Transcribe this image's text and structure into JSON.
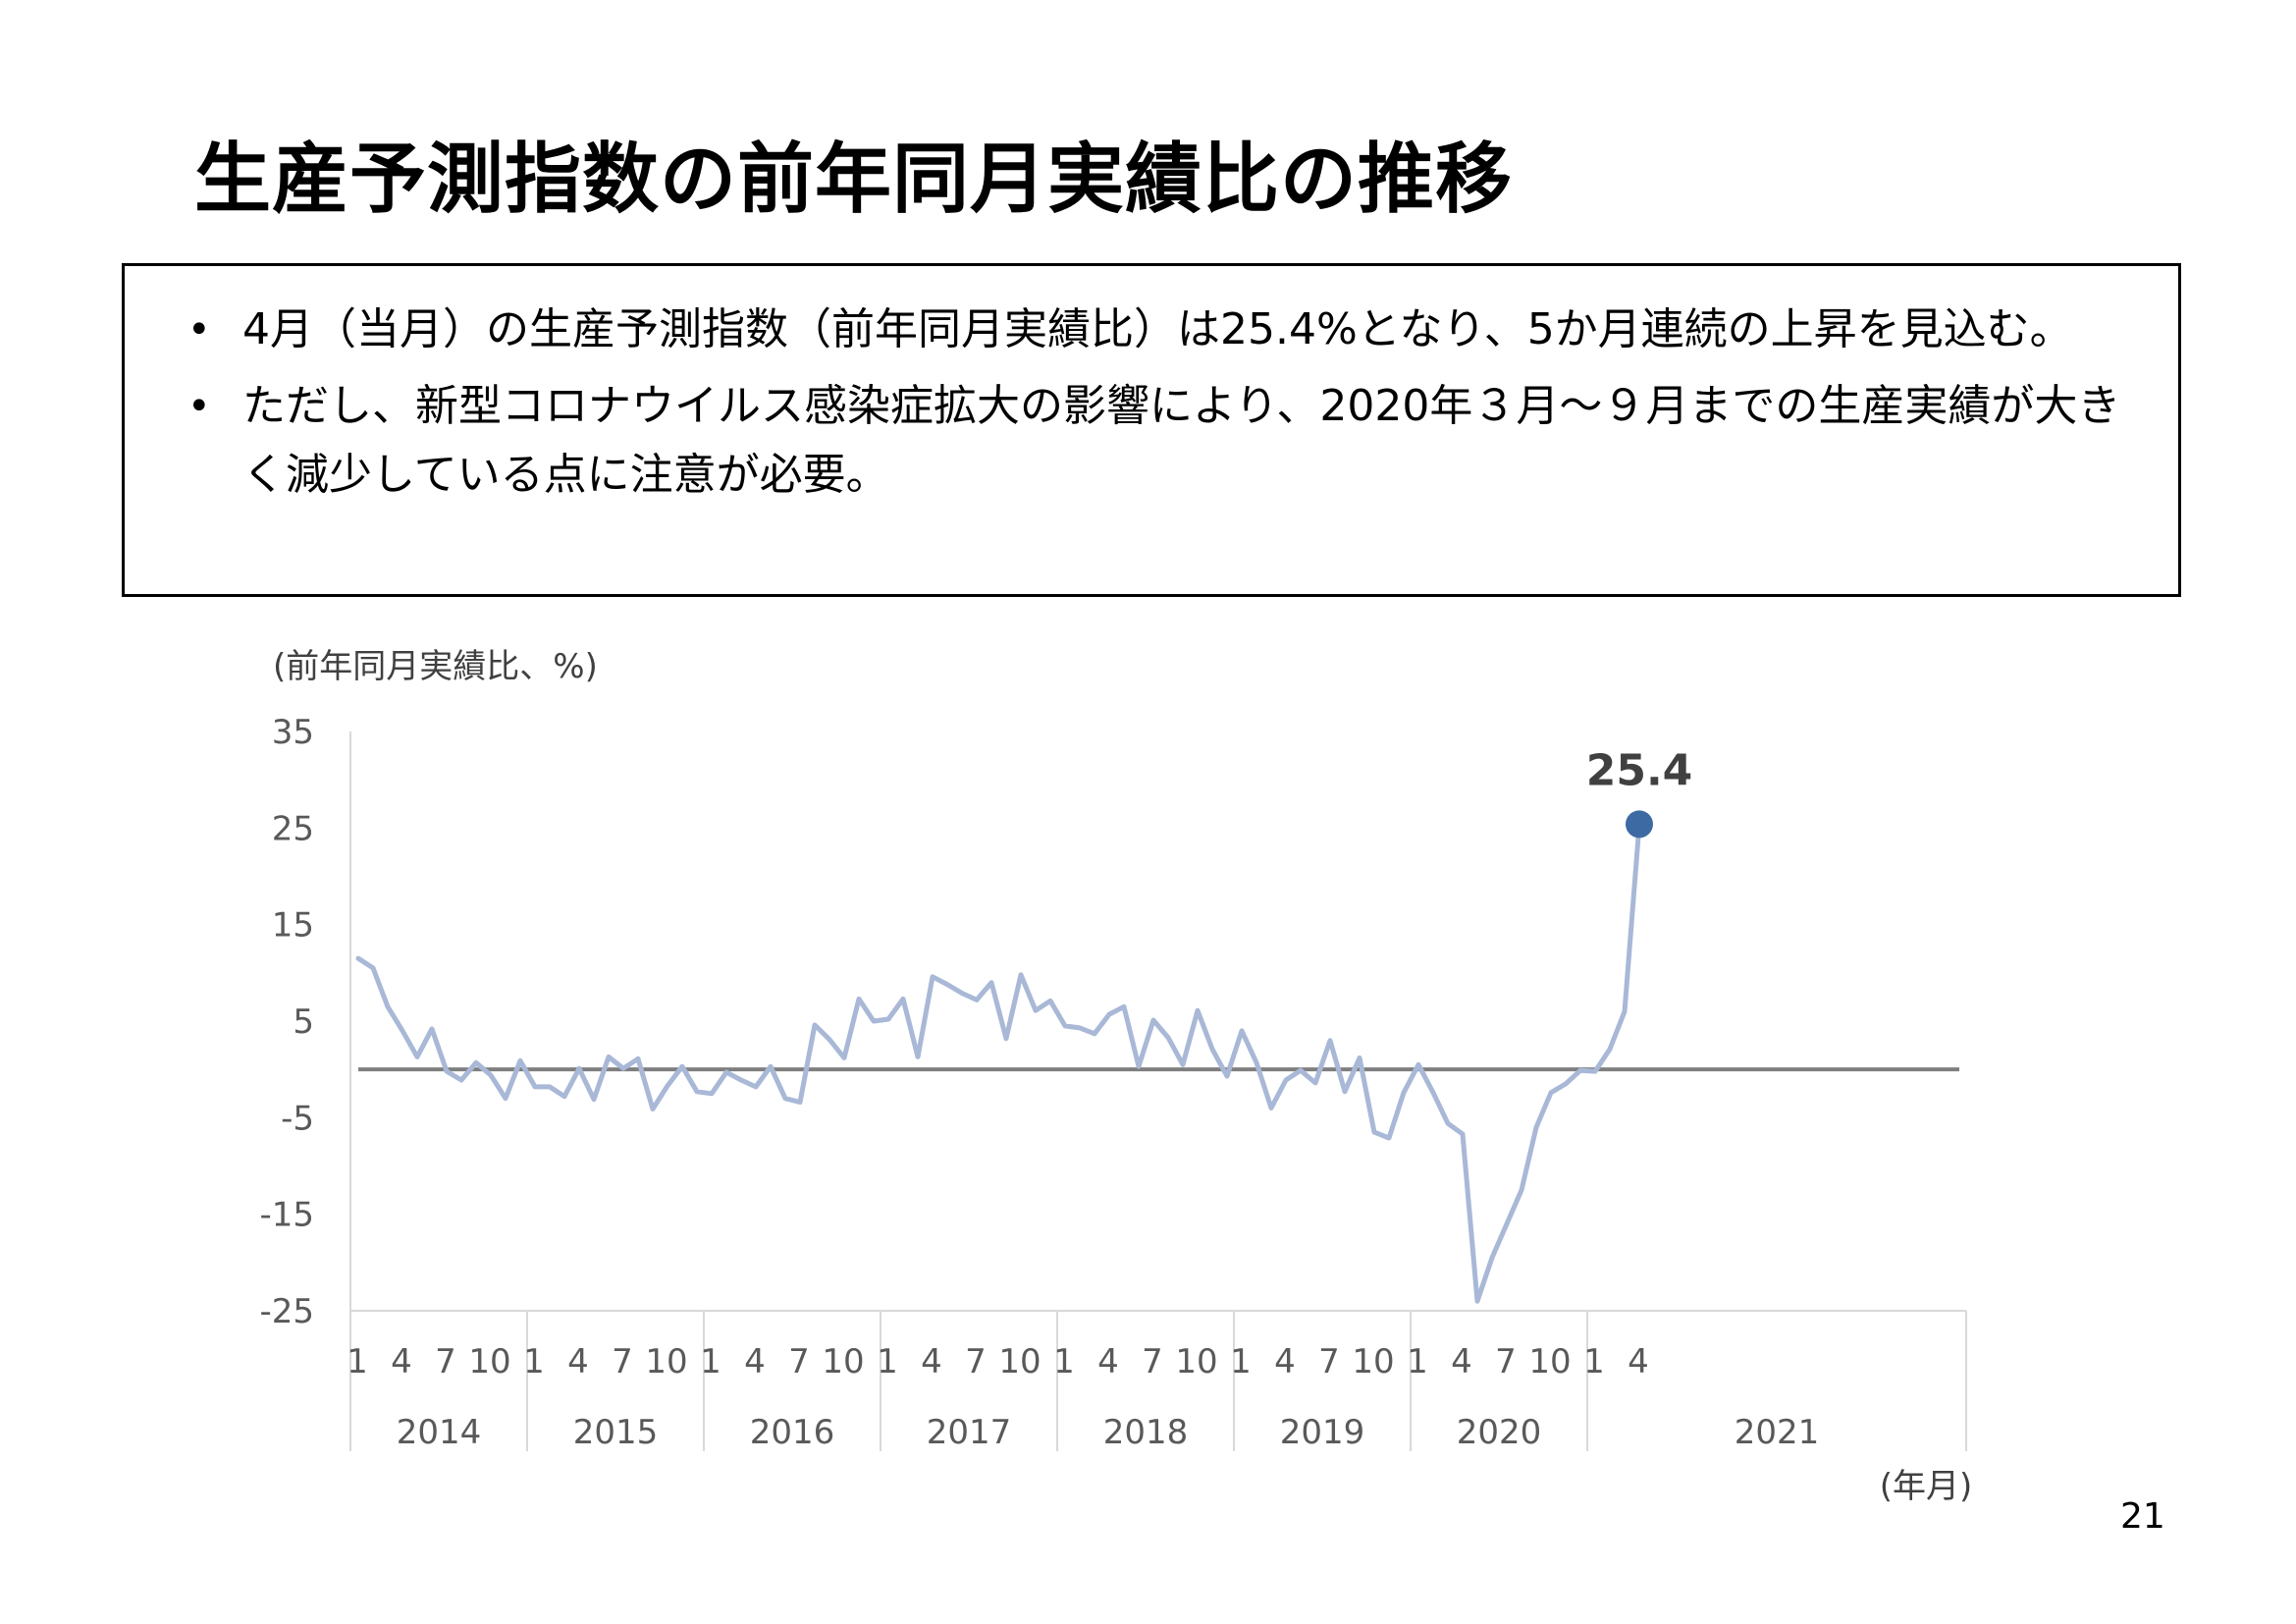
{
  "slide": {
    "title": "生産予測指数の前年同月実績比の推移",
    "bullets": [
      "4月（当月）の生産予測指数（前年同月実績比）は25.4%となり、5か月連続の上昇を見込む。",
      "ただし、新型コロナウイルス感染症拡大の影響により、2020年３月～９月までの生産実績が大きく減少している点に注意が必要。"
    ],
    "bullet_symbol": "•",
    "page_number": "21"
  },
  "chart_data": {
    "type": "line",
    "ylabel": "(前年同月実績比、%)",
    "xlabel": "(年月)",
    "ylim": [
      -25,
      35
    ],
    "yticks": [
      "35",
      "25",
      "15",
      "5",
      "-5",
      "-15",
      "-25"
    ],
    "grid": false,
    "reference_line": 0,
    "year_labels": [
      "2014",
      "2015",
      "2016",
      "2017",
      "2018",
      "2019",
      "2020",
      "2021"
    ],
    "month_tick_labels": [
      "1",
      "4",
      "7",
      "10"
    ],
    "month_tick_labels_2021": [
      "1",
      "4"
    ],
    "line_color": "#a8b8d6",
    "reference_line_color": "#7f7f7f",
    "highlight_color": "#3d6aa3",
    "highlight_label": "25.4",
    "series": [
      {
        "values": [
          11.5,
          10.5,
          6.5,
          4.0,
          1.3,
          4.2,
          -0.2,
          -1.1,
          0.7,
          -0.6,
          -3.0,
          0.9,
          -1.8,
          -1.8,
          -2.8,
          0.1,
          -3.1,
          1.3,
          0.1,
          1.1,
          -4.1,
          -1.7,
          0.3,
          -2.3,
          -2.5,
          -0.3,
          -1.1,
          -1.8,
          0.3,
          -3.0,
          -3.4,
          4.6,
          3.1,
          1.2,
          7.3,
          5.0,
          5.2,
          7.3,
          1.3,
          9.6,
          8.8,
          7.9,
          7.2,
          9.0,
          3.2,
          9.8,
          6.1,
          7.1,
          4.5,
          4.3,
          3.7,
          5.7,
          6.5,
          0.3,
          5.1,
          3.3,
          0.5,
          6.1,
          2.1,
          -0.7,
          4.0,
          0.7,
          -4.0,
          -1.1,
          -0.1,
          -1.4,
          3.0,
          -2.3,
          1.2,
          -6.5,
          -7.1,
          -2.4,
          0.5,
          -2.4,
          -5.6,
          -6.7,
          -24.0,
          -19.5,
          -16.0,
          -12.5,
          -6.0,
          -2.4,
          -1.5,
          -0.1,
          -0.2,
          2.1,
          6.0,
          25.4
        ]
      }
    ]
  }
}
